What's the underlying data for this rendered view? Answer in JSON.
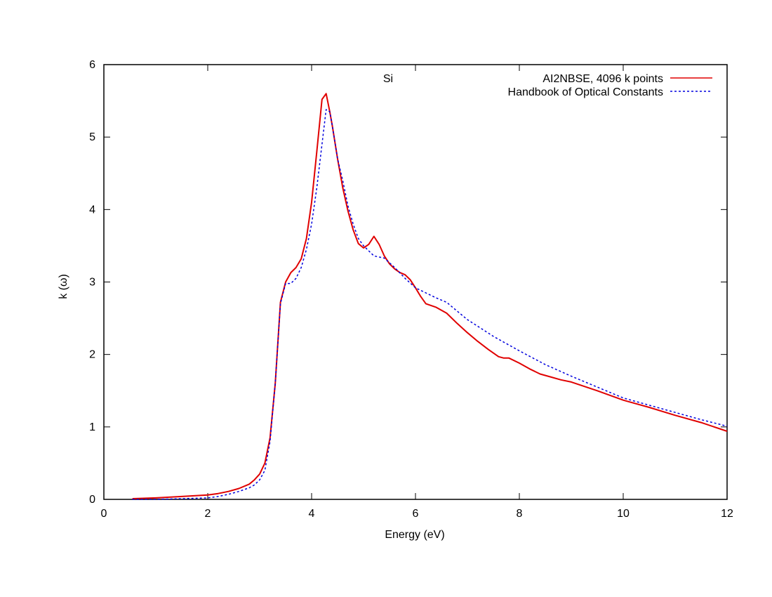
{
  "chart_data": {
    "type": "line",
    "title": "Si",
    "xlabel": "Energy (eV)",
    "ylabel": "k (ω)",
    "xlim": [
      0,
      12
    ],
    "ylim": [
      0,
      6
    ],
    "xticks": [
      "0",
      "2",
      "4",
      "6",
      "8",
      "10",
      "12"
    ],
    "yticks": [
      "0",
      "1",
      "2",
      "3",
      "4",
      "5",
      "6"
    ],
    "grid": false,
    "legend_position": "top-right",
    "series": [
      {
        "name": "AI2NBSE, 4096 k points",
        "color": "#e00000",
        "style": "solid",
        "x": [
          0.55,
          1.0,
          1.5,
          2.0,
          2.2,
          2.4,
          2.6,
          2.8,
          2.9,
          3.0,
          3.1,
          3.2,
          3.3,
          3.4,
          3.5,
          3.6,
          3.7,
          3.8,
          3.9,
          4.0,
          4.1,
          4.2,
          4.28,
          4.35,
          4.4,
          4.5,
          4.6,
          4.7,
          4.8,
          4.9,
          5.0,
          5.1,
          5.2,
          5.3,
          5.4,
          5.5,
          5.6,
          5.7,
          5.8,
          5.9,
          6.0,
          6.1,
          6.2,
          6.4,
          6.6,
          6.8,
          7.0,
          7.2,
          7.4,
          7.6,
          7.7,
          7.8,
          8.0,
          8.2,
          8.4,
          8.6,
          8.8,
          9.0,
          9.5,
          10.0,
          10.5,
          11.0,
          11.5,
          12.0
        ],
        "y": [
          0.01,
          0.02,
          0.04,
          0.06,
          0.08,
          0.11,
          0.15,
          0.21,
          0.27,
          0.35,
          0.5,
          0.85,
          1.6,
          2.72,
          3.0,
          3.13,
          3.2,
          3.32,
          3.6,
          4.1,
          4.8,
          5.52,
          5.6,
          5.35,
          5.15,
          4.7,
          4.3,
          3.98,
          3.72,
          3.53,
          3.47,
          3.52,
          3.63,
          3.52,
          3.36,
          3.25,
          3.18,
          3.13,
          3.1,
          3.03,
          2.92,
          2.8,
          2.7,
          2.65,
          2.57,
          2.43,
          2.3,
          2.18,
          2.07,
          1.97,
          1.95,
          1.95,
          1.88,
          1.8,
          1.73,
          1.69,
          1.65,
          1.62,
          1.5,
          1.37,
          1.27,
          1.16,
          1.06,
          0.94
        ]
      },
      {
        "name": "Handbook of Optical Constants",
        "color": "#0000dd",
        "style": "dashed",
        "x": [
          0.55,
          1.0,
          1.5,
          2.0,
          2.2,
          2.4,
          2.6,
          2.8,
          2.9,
          3.0,
          3.1,
          3.2,
          3.3,
          3.4,
          3.5,
          3.6,
          3.7,
          3.8,
          3.9,
          4.0,
          4.1,
          4.2,
          4.28,
          4.35,
          4.4,
          4.5,
          4.6,
          4.7,
          4.8,
          4.9,
          5.0,
          5.2,
          5.4,
          5.6,
          5.8,
          6.0,
          6.2,
          6.4,
          6.6,
          6.8,
          7.0,
          7.5,
          8.0,
          8.5,
          9.0,
          9.5,
          10.0,
          10.5,
          11.0,
          11.5,
          12.0
        ],
        "y": [
          0.0,
          0.0,
          0.01,
          0.02,
          0.04,
          0.07,
          0.11,
          0.16,
          0.2,
          0.27,
          0.4,
          0.8,
          1.6,
          2.7,
          2.98,
          2.98,
          3.05,
          3.2,
          3.45,
          3.8,
          4.3,
          4.9,
          5.38,
          5.35,
          5.15,
          4.7,
          4.4,
          4.05,
          3.8,
          3.6,
          3.5,
          3.36,
          3.33,
          3.2,
          3.05,
          2.92,
          2.85,
          2.78,
          2.72,
          2.6,
          2.48,
          2.25,
          2.05,
          1.86,
          1.7,
          1.55,
          1.4,
          1.3,
          1.2,
          1.1,
          1.01
        ]
      }
    ]
  }
}
